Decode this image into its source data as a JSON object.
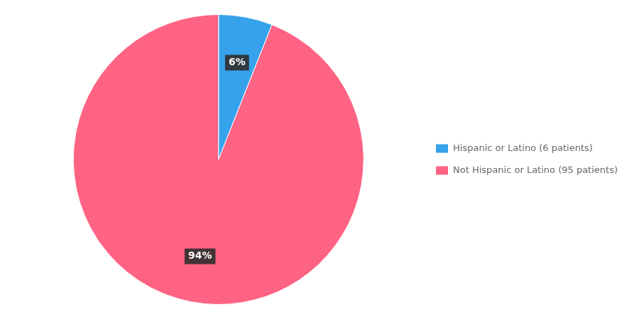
{
  "chart_data": {
    "type": "pie",
    "categories": [
      "Hispanic or Latino (6 patients)",
      "Not Hispanic or Latino (95 patients)"
    ],
    "values": [
      6,
      94
    ],
    "value_labels": [
      "6%",
      "94%"
    ],
    "data_labels": true,
    "legend": "right"
  }
}
